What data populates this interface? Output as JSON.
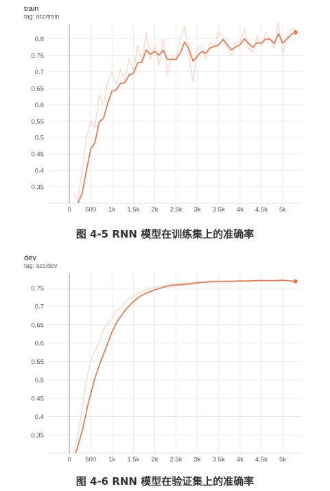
{
  "panels": [
    {
      "title": "train",
      "tag": "tag: acc/train",
      "caption": "图 4-5 RNN 模型在训练集上的准确率"
    },
    {
      "title": "dev",
      "tag": "tag: acc/dev",
      "caption": "图 4-6 RNN 模型在验证集上的准确率"
    }
  ],
  "chart_data": [
    {
      "type": "line",
      "title": "train",
      "subtitle": "tag: acc/train",
      "xlabel": "",
      "ylabel": "",
      "x_ticks": [
        0,
        500,
        1000,
        1500,
        2000,
        2500,
        3000,
        3500,
        4000,
        4500,
        5000
      ],
      "x_tick_labels": [
        "0",
        "500",
        "1k",
        "1.5k",
        "2k",
        "2.5k",
        "3k",
        "3.5k",
        "4k",
        "4.5k",
        "5k"
      ],
      "y_ticks": [
        0.35,
        0.4,
        0.45,
        0.5,
        0.55,
        0.6,
        0.65,
        0.7,
        0.75,
        0.8
      ],
      "y_tick_labels": [
        "0.35",
        "0.4",
        "0.45",
        "0.5",
        "0.55",
        "0.6",
        "0.65",
        "0.7",
        "0.75",
        "0.8"
      ],
      "xlim": [
        -500,
        5450
      ],
      "ylim": [
        0.3,
        0.845
      ],
      "grid": true,
      "colors": {
        "smoothed": "#f07447",
        "raw": "#fbd9cb"
      },
      "series": [
        {
          "role": "smoothed",
          "x": [
            100,
            200,
            300,
            400,
            500,
            600,
            700,
            800,
            900,
            1000,
            1100,
            1200,
            1300,
            1400,
            1500,
            1600,
            1700,
            1800,
            1900,
            2000,
            2100,
            2200,
            2300,
            2400,
            2500,
            2600,
            2700,
            2800,
            2900,
            3000,
            3100,
            3200,
            3300,
            3400,
            3500,
            3600,
            3700,
            3800,
            3900,
            4000,
            4100,
            4200,
            4300,
            4400,
            4500,
            4600,
            4700,
            4800,
            4900,
            5000,
            5100,
            5200,
            5300
          ],
          "y": [
            0.29,
            0.3,
            0.33,
            0.4,
            0.465,
            0.485,
            0.548,
            0.558,
            0.605,
            0.641,
            0.645,
            0.665,
            0.666,
            0.69,
            0.695,
            0.727,
            0.729,
            0.766,
            0.753,
            0.762,
            0.75,
            0.765,
            0.737,
            0.738,
            0.737,
            0.758,
            0.79,
            0.77,
            0.732,
            0.747,
            0.761,
            0.756,
            0.773,
            0.777,
            0.781,
            0.798,
            0.782,
            0.766,
            0.776,
            0.782,
            0.8,
            0.786,
            0.774,
            0.789,
            0.786,
            0.8,
            0.799,
            0.786,
            0.816,
            0.787,
            0.8,
            0.813,
            0.82
          ]
        },
        {
          "role": "raw",
          "x": [
            100,
            200,
            300,
            400,
            500,
            600,
            700,
            800,
            900,
            1000,
            1100,
            1200,
            1300,
            1400,
            1500,
            1600,
            1700,
            1800,
            1900,
            2000,
            2100,
            2200,
            2300,
            2400,
            2500,
            2600,
            2700,
            2800,
            2900,
            3000,
            3100,
            3200,
            3300,
            3400,
            3500,
            3600,
            3700,
            3800,
            3900,
            4000,
            4100,
            4200,
            4300,
            4400,
            4500,
            4600,
            4700,
            4800,
            4900,
            5000,
            5100,
            5200,
            5300
          ],
          "y": [
            0.33,
            0.31,
            0.4,
            0.5,
            0.55,
            0.53,
            0.63,
            0.6,
            0.67,
            0.7,
            0.66,
            0.71,
            0.67,
            0.74,
            0.7,
            0.78,
            0.73,
            0.82,
            0.74,
            0.78,
            0.72,
            0.8,
            0.69,
            0.75,
            0.74,
            0.8,
            0.84,
            0.75,
            0.67,
            0.77,
            0.78,
            0.74,
            0.79,
            0.78,
            0.82,
            0.81,
            0.77,
            0.75,
            0.79,
            0.79,
            0.83,
            0.77,
            0.76,
            0.81,
            0.78,
            0.82,
            0.8,
            0.77,
            0.85,
            0.75,
            0.81,
            0.83,
            0.83
          ]
        }
      ],
      "end_point": {
        "x": 5300,
        "y": 0.82
      }
    },
    {
      "type": "line",
      "title": "dev",
      "subtitle": "tag: acc/dev",
      "xlabel": "",
      "ylabel": "",
      "x_ticks": [
        0,
        500,
        1000,
        1500,
        2000,
        2500,
        3000,
        3500,
        4000,
        4500,
        5000
      ],
      "x_tick_labels": [
        "0",
        "500",
        "1k",
        "1.5k",
        "2k",
        "2.5k",
        "3k",
        "3.5k",
        "4k",
        "4.5k",
        "5k"
      ],
      "y_ticks": [
        0.35,
        0.4,
        0.45,
        0.5,
        0.55,
        0.6,
        0.65,
        0.7,
        0.75
      ],
      "y_tick_labels": [
        "0.35",
        "0.4",
        "0.45",
        "0.5",
        "0.55",
        "0.6",
        "0.65",
        "0.7",
        "0.75"
      ],
      "xlim": [
        -500,
        5450
      ],
      "ylim": [
        0.3,
        0.79
      ],
      "grid": true,
      "colors": {
        "smoothed": "#f07447",
        "raw": "#fbd9cb"
      },
      "series": [
        {
          "role": "smoothed",
          "x": [
            150,
            300,
            450,
            600,
            750,
            900,
            1000,
            1100,
            1200,
            1350,
            1500,
            1650,
            1800,
            2000,
            2200,
            2400,
            2600,
            2800,
            3000,
            3200,
            3400,
            3600,
            3800,
            4000,
            4200,
            4400,
            4600,
            4800,
            5000,
            5200,
            5300
          ],
          "y": [
            0.3,
            0.36,
            0.44,
            0.505,
            0.555,
            0.6,
            0.63,
            0.655,
            0.672,
            0.695,
            0.713,
            0.727,
            0.736,
            0.745,
            0.752,
            0.757,
            0.759,
            0.761,
            0.764,
            0.766,
            0.767,
            0.768,
            0.768,
            0.769,
            0.769,
            0.77,
            0.77,
            0.77,
            0.771,
            0.769,
            0.768
          ]
        },
        {
          "role": "raw",
          "x": [
            100,
            200,
            300,
            400,
            500,
            600,
            700,
            800,
            900,
            1000,
            1100,
            1200,
            1300,
            1400,
            1500,
            1600,
            1700,
            1800,
            1900,
            2000,
            2200,
            2400,
            2600,
            2800,
            3000,
            3200,
            3400,
            3600,
            3800,
            4000,
            4200,
            4400,
            4600,
            4800,
            5000,
            5200,
            5300
          ],
          "y": [
            0.3,
            0.35,
            0.42,
            0.5,
            0.55,
            0.58,
            0.6,
            0.635,
            0.655,
            0.665,
            0.69,
            0.695,
            0.71,
            0.72,
            0.727,
            0.735,
            0.74,
            0.745,
            0.748,
            0.752,
            0.756,
            0.76,
            0.762,
            0.763,
            0.766,
            0.768,
            0.769,
            0.769,
            0.77,
            0.77,
            0.77,
            0.771,
            0.771,
            0.771,
            0.772,
            0.77,
            0.769
          ]
        }
      ],
      "end_point": {
        "x": 5300,
        "y": 0.768
      }
    }
  ]
}
